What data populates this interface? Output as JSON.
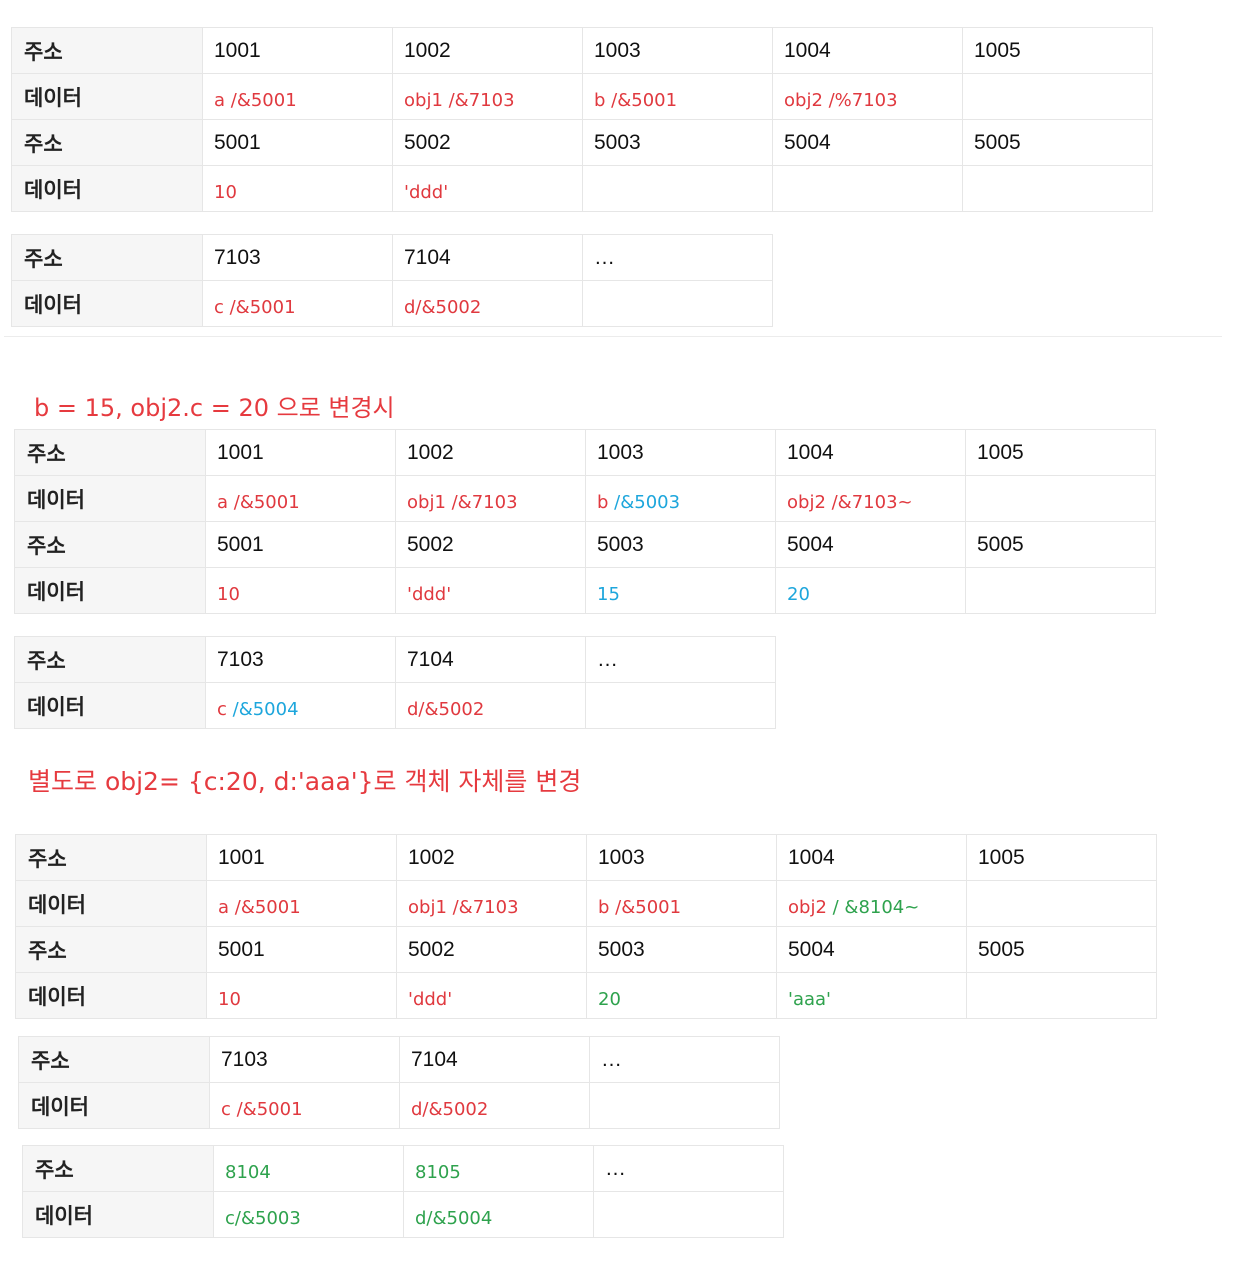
{
  "labels": {
    "address": "주소",
    "data": "데이터"
  },
  "colors": {
    "original": "#e0393f",
    "changed": "#1da6dc",
    "new_object": "#2ea24d"
  },
  "headings": {
    "step2": "b = 15, obj2.c = 20 으로 변경시",
    "step3": "별도로 obj2= {c:20, d:'aaa'}로 객체 자체를 변경"
  },
  "sections": [
    {
      "tables": [
        {
          "rows": [
            {
              "addresses": [
                "1001",
                "1002",
                "1003",
                "1004",
                "1005"
              ],
              "data": [
                {
                  "text": "a /&5001",
                  "color": "red"
                },
                {
                  "text": "obj1 /&7103",
                  "color": "red"
                },
                {
                  "text": "b  /&5001",
                  "color": "red"
                },
                {
                  "text": "obj2  /%7103",
                  "color": "red"
                },
                {
                  "text": "",
                  "color": "red"
                }
              ]
            },
            {
              "addresses": [
                "5001",
                "5002",
                "5003",
                "5004",
                "5005"
              ],
              "data": [
                {
                  "text": "10",
                  "color": "red"
                },
                {
                  "text": "'ddd'",
                  "color": "red"
                },
                {
                  "text": "",
                  "color": "red"
                },
                {
                  "text": "",
                  "color": "red"
                },
                {
                  "text": "",
                  "color": "red"
                }
              ]
            }
          ]
        },
        {
          "rows": [
            {
              "addresses": [
                "7103",
                "7104",
                "…"
              ],
              "data": [
                {
                  "text": "c  /&5001",
                  "color": "red"
                },
                {
                  "text": "d/&5002",
                  "color": "red"
                },
                {
                  "text": "",
                  "color": "red"
                }
              ]
            }
          ]
        }
      ]
    },
    {
      "tables": [
        {
          "rows": [
            {
              "addresses": [
                "1001",
                "1002",
                "1003",
                "1004",
                "1005"
              ],
              "data": [
                {
                  "text": "a /&5001",
                  "color": "red"
                },
                {
                  "text": "obj1 /&7103",
                  "color": "red"
                },
                {
                  "text": "b  /&5003",
                  "color": "mixed-b"
                },
                {
                  "text": "obj2  /&7103~",
                  "color": "red"
                },
                {
                  "text": "",
                  "color": "red"
                }
              ]
            },
            {
              "addresses": [
                "5001",
                "5002",
                "5003",
                "5004",
                "5005"
              ],
              "data": [
                {
                  "text": "10",
                  "color": "red"
                },
                {
                  "text": "'ddd'",
                  "color": "red"
                },
                {
                  "text": "15",
                  "color": "blue"
                },
                {
                  "text": "20",
                  "color": "blue"
                },
                {
                  "text": "",
                  "color": "red"
                }
              ]
            }
          ]
        },
        {
          "rows": [
            {
              "addresses": [
                "7103",
                "7104",
                "…"
              ],
              "data": [
                {
                  "text": "c /&5004",
                  "color": "mixed-c"
                },
                {
                  "text": "d/&5002",
                  "color": "red"
                },
                {
                  "text": "",
                  "color": "red"
                }
              ]
            }
          ]
        }
      ]
    },
    {
      "tables": [
        {
          "rows": [
            {
              "addresses": [
                "1001",
                "1002",
                "1003",
                "1004",
                "1005"
              ],
              "data": [
                {
                  "text": "a /&5001",
                  "color": "red"
                },
                {
                  "text": "obj1 /&7103",
                  "color": "red"
                },
                {
                  "text": "b  /&5001",
                  "color": "red"
                },
                {
                  "text": "obj2 / &8104~",
                  "color": "mixed-obj2"
                },
                {
                  "text": "",
                  "color": "red"
                }
              ]
            },
            {
              "addresses": [
                "5001",
                "5002",
                "5003",
                "5004",
                "5005"
              ],
              "data": [
                {
                  "text": "10",
                  "color": "red"
                },
                {
                  "text": "'ddd'",
                  "color": "red"
                },
                {
                  "text": "20",
                  "color": "green"
                },
                {
                  "text": "'aaa'",
                  "color": "green"
                },
                {
                  "text": "",
                  "color": "red"
                }
              ]
            }
          ]
        },
        {
          "rows": [
            {
              "addresses": [
                "7103",
                "7104",
                "…"
              ],
              "data": [
                {
                  "text": "c  /&5001",
                  "color": "red"
                },
                {
                  "text": "d/&5002",
                  "color": "red"
                },
                {
                  "text": "",
                  "color": "red"
                }
              ]
            }
          ]
        },
        {
          "rows": [
            {
              "addresses": [
                "8104",
                "8105",
                "…"
              ],
              "data": [
                {
                  "text": "c/&5003",
                  "color": "green"
                },
                {
                  "text": "d/&5004",
                  "color": "green"
                },
                {
                  "text": "",
                  "color": "red"
                }
              ]
            }
          ]
        }
      ]
    }
  ]
}
